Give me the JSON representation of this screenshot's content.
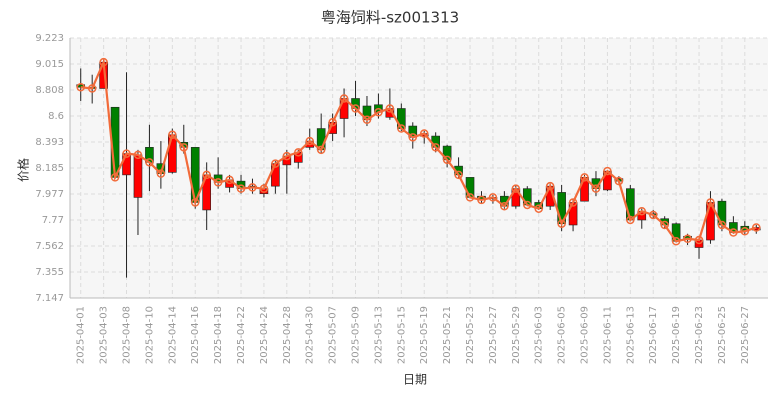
{
  "chart_data": {
    "type": "candlestick",
    "title": "粤海饲料-sz001313",
    "x_label": "日期",
    "y_label": "价格",
    "categories": [
      "2025-04-01",
      null,
      "2025-04-03",
      null,
      "2025-04-08",
      null,
      "2025-04-10",
      null,
      "2025-04-14",
      null,
      "2025-04-16",
      null,
      "2025-04-18",
      null,
      "2025-04-22",
      null,
      "2025-04-24",
      null,
      "2025-04-28",
      null,
      "2025-04-30",
      null,
      "2025-05-07",
      null,
      "2025-05-09",
      null,
      "2025-05-13",
      null,
      "2025-05-15",
      null,
      "2025-05-19",
      null,
      "2025-05-21",
      null,
      "2025-05-23",
      null,
      "2025-05-27",
      null,
      "2025-05-29",
      null,
      "2025-06-03",
      null,
      "2025-06-05",
      null,
      "2025-06-09",
      null,
      "2025-06-11",
      null,
      "2025-06-13",
      null,
      "2025-06-17",
      null,
      "2025-06-19",
      null,
      "2025-06-23",
      null,
      "2025-06-25",
      null,
      "2025-06-27",
      null
    ],
    "open": [
      8.85,
      8.83,
      8.82,
      8.67,
      8.13,
      7.95,
      8.35,
      8.22,
      8.15,
      8.39,
      8.35,
      7.85,
      8.13,
      8.03,
      8.08,
      8.04,
      7.98,
      8.04,
      8.21,
      8.23,
      8.35,
      8.5,
      8.46,
      8.58,
      8.74,
      8.68,
      8.69,
      8.59,
      8.66,
      8.52,
      8.44,
      8.44,
      8.36,
      8.2,
      8.11,
      7.96,
      7.94,
      7.96,
      7.88,
      8.02,
      7.91,
      7.88,
      7.99,
      7.73,
      7.92,
      8.1,
      8.01,
      8.1,
      8.02,
      7.77,
      7.82,
      7.78,
      7.74,
      7.64,
      7.55,
      7.61,
      7.92,
      7.75,
      7.72,
      7.69
    ],
    "high": [
      8.98,
      8.93,
      9.05,
      8.67,
      8.95,
      8.33,
      8.53,
      8.4,
      8.5,
      8.53,
      8.35,
      8.23,
      8.27,
      8.13,
      8.13,
      8.1,
      8.06,
      8.24,
      8.33,
      8.33,
      8.5,
      8.62,
      8.62,
      8.82,
      8.88,
      8.76,
      8.78,
      8.82,
      8.7,
      8.55,
      8.48,
      8.47,
      8.37,
      8.27,
      8.11,
      8.0,
      7.97,
      8.0,
      8.05,
      8.04,
      7.93,
      8.06,
      8.05,
      7.94,
      8.13,
      8.16,
      8.16,
      8.12,
      8.05,
      7.86,
      7.85,
      7.8,
      7.75,
      7.66,
      7.63,
      8.0,
      7.94,
      7.8,
      7.76,
      7.73
    ],
    "low": [
      8.72,
      8.7,
      8.82,
      8.1,
      7.31,
      7.65,
      8.0,
      8.02,
      8.14,
      8.3,
      7.86,
      7.69,
      8.02,
      7.99,
      7.98,
      7.98,
      7.95,
      7.98,
      7.98,
      8.18,
      8.33,
      8.3,
      8.4,
      8.43,
      8.6,
      8.52,
      8.58,
      8.57,
      8.48,
      8.34,
      8.38,
      8.31,
      8.19,
      8.1,
      7.95,
      7.9,
      7.9,
      7.86,
      7.86,
      7.88,
      7.85,
      7.85,
      7.68,
      7.68,
      7.92,
      7.96,
      8.0,
      8.06,
      7.76,
      7.7,
      7.78,
      7.7,
      7.59,
      7.57,
      7.46,
      7.58,
      7.68,
      7.66,
      7.65,
      7.66
    ],
    "close": [
      8.83,
      8.82,
      9.03,
      8.11,
      8.3,
      8.29,
      8.23,
      8.14,
      8.45,
      8.35,
      7.91,
      8.13,
      8.07,
      8.09,
      8.02,
      8.03,
      8.02,
      8.22,
      8.28,
      8.31,
      8.4,
      8.33,
      8.55,
      8.74,
      8.66,
      8.57,
      8.63,
      8.66,
      8.5,
      8.43,
      8.46,
      8.35,
      8.25,
      8.13,
      7.95,
      7.93,
      7.95,
      7.88,
      8.02,
      7.89,
      7.86,
      8.04,
      7.74,
      7.91,
      8.11,
      8.02,
      8.16,
      8.08,
      7.77,
      7.84,
      7.81,
      7.73,
      7.6,
      7.62,
      7.61,
      7.91,
      7.73,
      7.67,
      7.68,
      7.71
    ],
    "up_color": "#ff0000",
    "down_color": "#008000",
    "line_color": "#f26b3a",
    "ylim": [
      7.147,
      9.223
    ],
    "yticks": [
      7.147,
      7.355,
      7.562,
      7.77,
      7.977,
      8.185,
      8.393,
      8.6,
      8.808,
      9.015,
      9.223
    ],
    "grid": true
  }
}
